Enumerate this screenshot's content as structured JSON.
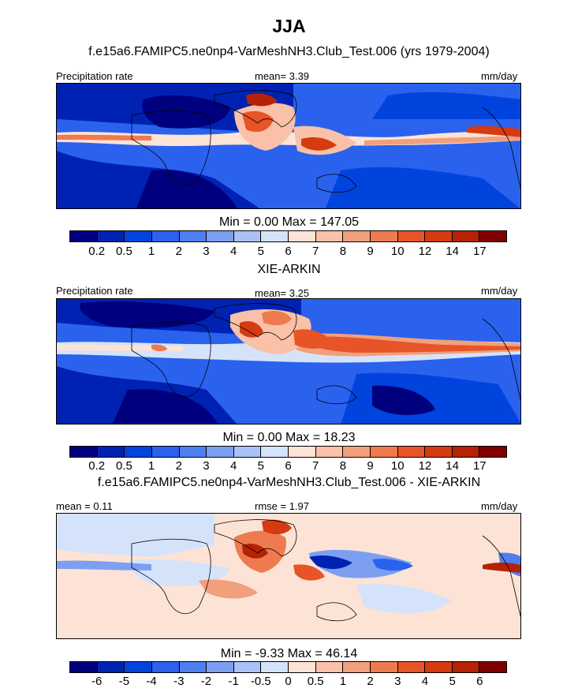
{
  "title": "JJA",
  "case_title": "f.e15a6.FAMIPC5.ne0np4-VarMeshNH3.Club_Test.006 (yrs 1979-2004)",
  "panels": [
    {
      "title": "",
      "left_label": "Precipitation rate",
      "center_label": "mean=   3.39",
      "right_label": "mm/day",
      "stats": "Min =   0.00 Max = 147.05",
      "colorbar": "abs"
    },
    {
      "title": "XIE-ARKIN",
      "left_label": "Precipitation rate",
      "center_label": "mean=   3.25",
      "right_label": "mm/day",
      "stats": "Min =   0.00 Max =  18.23",
      "colorbar": "abs"
    },
    {
      "title": "f.e15a6.FAMIPC5.ne0np4-VarMeshNH3.Club_Test.006 - XIE-ARKIN",
      "left_label": "mean =   0.11",
      "center_label": "rmse =   1.97",
      "right_label": "mm/day",
      "stats": "Min =  -9.33 Max =  46.14",
      "colorbar": "diff"
    }
  ],
  "colorbars": {
    "abs": {
      "colors": [
        "#00007f",
        "#0022b3",
        "#0044dd",
        "#2a62ee",
        "#4f7fef",
        "#7d9ff2",
        "#a9c2f5",
        "#d5e3fa",
        "#fde3d6",
        "#f9c1a7",
        "#f29f7b",
        "#ee7a50",
        "#e75427",
        "#d63a10",
        "#b52205",
        "#7f0000"
      ],
      "labels": [
        "0.2",
        "0.5",
        "1",
        "2",
        "3",
        "4",
        "5",
        "6",
        "7",
        "8",
        "9",
        "10",
        "12",
        "14",
        "17"
      ]
    },
    "diff": {
      "colors": [
        "#00007f",
        "#0022b3",
        "#0044dd",
        "#2a62ee",
        "#4f7fef",
        "#7d9ff2",
        "#a9c2f5",
        "#d5e3fa",
        "#fde3d6",
        "#f9c1a7",
        "#f29f7b",
        "#ee7a50",
        "#e75427",
        "#d63a10",
        "#b52205",
        "#7f0000"
      ],
      "labels": [
        "-6",
        "-5",
        "-4",
        "-3",
        "-2",
        "-1",
        "-0.5",
        "0",
        "0.5",
        "1",
        "2",
        "3",
        "4",
        "5",
        "6"
      ]
    }
  }
}
